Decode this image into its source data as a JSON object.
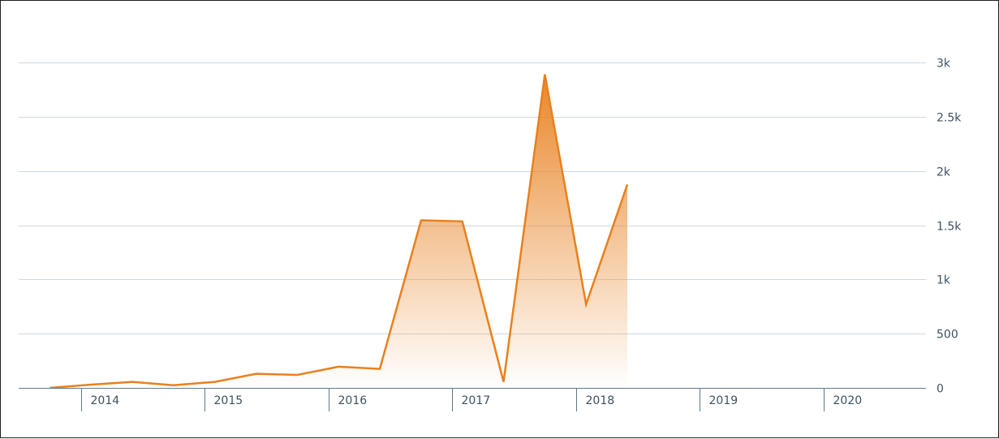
{
  "chart_data": {
    "type": "area",
    "title": "",
    "xlabel": "",
    "ylabel": "",
    "x_ticks": [
      "2014",
      "2015",
      "2016",
      "2017",
      "2018",
      "2019",
      "2020"
    ],
    "y_ticks": [
      "0",
      "500",
      "1k",
      "1.5k",
      "2k",
      "2.5k",
      "3k"
    ],
    "ylim": [
      0,
      3000
    ],
    "grid": "horizontal",
    "y_axis_position": "right",
    "series": [
      {
        "color": "#e8801e",
        "points": [
          {
            "x": "2013-10-01",
            "y": 0
          },
          {
            "x": "2014-02-01",
            "y": 30
          },
          {
            "x": "2014-06-01",
            "y": 55
          },
          {
            "x": "2014-10-01",
            "y": 25
          },
          {
            "x": "2015-02-01",
            "y": 55
          },
          {
            "x": "2015-06-01",
            "y": 130
          },
          {
            "x": "2015-10-01",
            "y": 120
          },
          {
            "x": "2016-02-01",
            "y": 195
          },
          {
            "x": "2016-06-01",
            "y": 175
          },
          {
            "x": "2016-10-01",
            "y": 1545
          },
          {
            "x": "2017-02-01",
            "y": 1535
          },
          {
            "x": "2017-06-01",
            "y": 55
          },
          {
            "x": "2017-10-01",
            "y": 2890
          },
          {
            "x": "2018-02-01",
            "y": 770
          },
          {
            "x": "2018-06-01",
            "y": 1875
          }
        ]
      }
    ]
  }
}
